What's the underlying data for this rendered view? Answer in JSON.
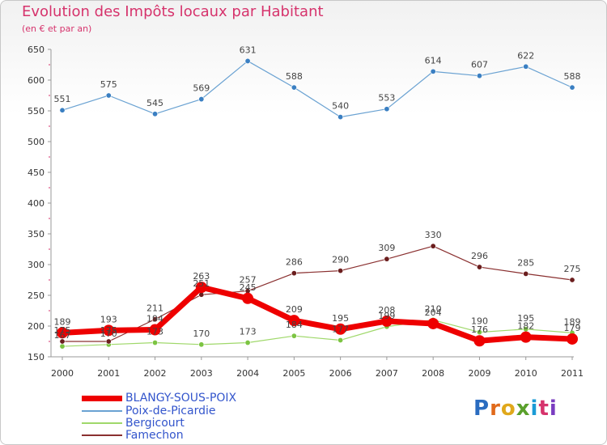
{
  "title": "Evolution des Impôts locaux par Habitant",
  "subtitle": "(en € et par an)",
  "logo": "Proxiti",
  "chart_data": {
    "type": "line",
    "x": [
      "2000",
      "2001",
      "2002",
      "2003",
      "2004",
      "2005",
      "2006",
      "2007",
      "2008",
      "2009",
      "2010",
      "2011"
    ],
    "yticks": [
      150,
      200,
      250,
      300,
      350,
      400,
      450,
      500,
      550,
      600,
      650
    ],
    "ylim": [
      150,
      650
    ],
    "grid": false,
    "legend_position": "bottom-left",
    "series": [
      {
        "name": "Poix-de-Picardie",
        "color": "#6aa2d2",
        "marker": "#3a7fc2",
        "width": 1.2,
        "values": [
          551,
          575,
          545,
          569,
          631,
          588,
          540,
          553,
          614,
          607,
          622,
          588
        ],
        "labels": [
          "551",
          "575",
          "545",
          "569",
          "631",
          "588",
          "540",
          "553",
          "614",
          "607",
          "622",
          "588"
        ]
      },
      {
        "name": "Bergicourt",
        "color": "#9fd86a",
        "marker": "#7cc442",
        "width": 1.2,
        "values": [
          167,
          170,
          173,
          170,
          173,
          184,
          177,
          199,
          210,
          190,
          195,
          189
        ],
        "labels": [
          "167",
          "170",
          "173",
          "170",
          "173",
          "184",
          "177",
          "199",
          "210",
          "190",
          "195",
          "189"
        ]
      },
      {
        "name": "Famechon",
        "color": "#8a3030",
        "marker": "#6b1e1e",
        "width": 1.2,
        "values": [
          175,
          175,
          211,
          251,
          257,
          286,
          290,
          309,
          330,
          296,
          285,
          275
        ],
        "labels": [
          "175",
          "175",
          "211",
          "251",
          "257",
          "286",
          "290",
          "309",
          "330",
          "296",
          "285",
          "275"
        ]
      },
      {
        "name": "BLANGY-SOUS-POIX",
        "color": "#ee0000",
        "marker": "#ee0000",
        "width": 7,
        "values": [
          189,
          193,
          194,
          263,
          245,
          209,
          195,
          208,
          204,
          176,
          182,
          179
        ],
        "labels": [
          "189",
          "193",
          "194",
          "263",
          "245",
          "209",
          "195",
          "208",
          "204",
          "176",
          "182",
          "179"
        ]
      }
    ],
    "legend_order": [
      "BLANGY-SOUS-POIX",
      "Poix-de-Picardie",
      "Bergicourt",
      "Famechon"
    ]
  }
}
